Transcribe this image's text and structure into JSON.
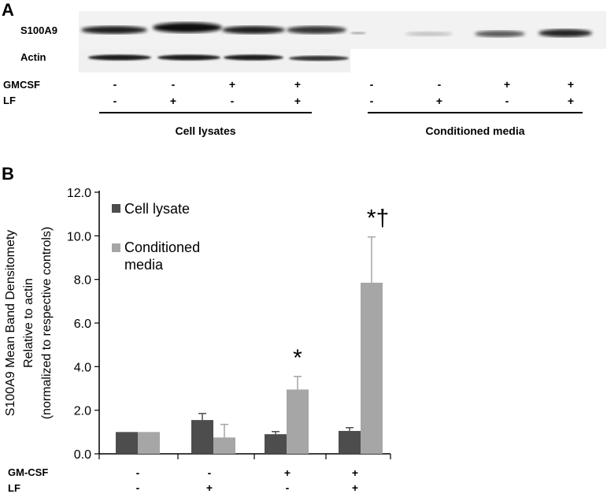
{
  "panel_a": {
    "letter": "A",
    "blot_labels": [
      "S100A9",
      "Actin"
    ],
    "treatment_rows": [
      {
        "name": "GMCSF",
        "lysate": [
          "-",
          "-",
          "+",
          "+"
        ],
        "media": [
          "-",
          "-",
          "+",
          "+"
        ]
      },
      {
        "name": "LF",
        "lysate": [
          "-",
          "+",
          "-",
          "+"
        ],
        "media": [
          "-",
          "+",
          "-",
          "+"
        ]
      }
    ],
    "group_labels": [
      "Cell lysates",
      "Conditioned media"
    ]
  },
  "panel_b": {
    "letter": "B",
    "treatment_rows": [
      {
        "name": "GM-CSF",
        "values": [
          "-",
          "-",
          "+",
          "+"
        ]
      },
      {
        "name": "LF",
        "values": [
          "-",
          "+",
          "-",
          "+"
        ]
      }
    ]
  },
  "chart_data": {
    "type": "bar",
    "ylabel_lines": [
      "S100A9 Mean Band Densitomety",
      "Relative to actin",
      "(normalized to respective controls)"
    ],
    "ylim": [
      0,
      12
    ],
    "yticks": [
      "0.0",
      "2.0",
      "4.0",
      "6.0",
      "8.0",
      "10.0",
      "12.0"
    ],
    "grid": false,
    "legend_position": "top-left",
    "categories": [
      "",
      "",
      "",
      ""
    ],
    "series": [
      {
        "name": "Cell lysate",
        "color": "#4d4d4d",
        "values": [
          1.0,
          1.55,
          0.9,
          1.05
        ],
        "errors": [
          0.0,
          0.3,
          0.12,
          0.15
        ]
      },
      {
        "name_lines": [
          "Conditioned",
          "media"
        ],
        "color": "#a6a6a6",
        "values": [
          1.0,
          0.75,
          2.95,
          7.85
        ],
        "errors": [
          0.0,
          0.6,
          0.6,
          2.1
        ]
      }
    ],
    "annotations": [
      "",
      "",
      "*",
      "*†"
    ]
  }
}
